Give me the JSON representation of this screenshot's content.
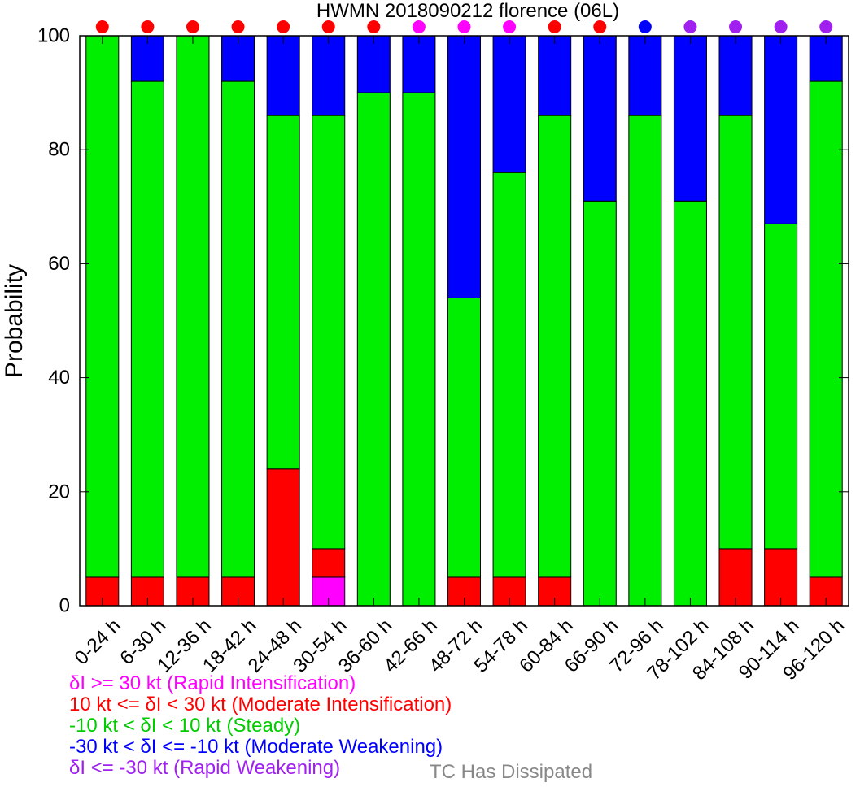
{
  "chart_data": {
    "type": "bar",
    "stacked": true,
    "title": "HWMN 2018090212 florence (06L)",
    "xlabel": "",
    "ylabel": "Probability",
    "ylim": [
      0,
      100
    ],
    "yticks": [
      0,
      20,
      40,
      60,
      80,
      100
    ],
    "grid": false,
    "categories": [
      "0-24 h",
      "6-30 h",
      "12-36 h",
      "18-42 h",
      "24-48 h",
      "30-54 h",
      "36-60 h",
      "42-66 h",
      "48-72 h",
      "54-78 h",
      "60-84 h",
      "66-90 h",
      "72-96 h",
      "78-102 h",
      "84-108 h",
      "90-114 h",
      "96-120 h"
    ],
    "series": [
      {
        "name": "δI >= 30 kt (Rapid Intensification)",
        "color": "#ff00ff",
        "values": [
          0,
          0,
          0,
          0,
          0,
          5,
          0,
          0,
          0,
          0,
          0,
          0,
          0,
          0,
          0,
          0,
          0
        ]
      },
      {
        "name": "10 kt <= δI < 30 kt (Moderate Intensification)",
        "color": "#ff0000",
        "values": [
          5,
          5,
          5,
          5,
          24,
          5,
          0,
          0,
          5,
          5,
          5,
          0,
          0,
          0,
          10,
          10,
          5
        ]
      },
      {
        "name": "-10 kt < δI < 10 kt (Steady)",
        "color": "#00ee00",
        "values": [
          95,
          87,
          95,
          87,
          62,
          76,
          90,
          90,
          49,
          71,
          81,
          71,
          86,
          71,
          76,
          57,
          87
        ]
      },
      {
        "name": "-30 kt < δI <= -10 kt (Moderate Weakening)",
        "color": "#0000ff",
        "values": [
          0,
          8,
          0,
          8,
          14,
          14,
          10,
          10,
          46,
          24,
          14,
          29,
          14,
          29,
          14,
          33,
          8
        ]
      },
      {
        "name": "δI <= -30 kt (Rapid Weakening)",
        "color": "#a020f0",
        "values": [
          0,
          0,
          0,
          0,
          0,
          0,
          0,
          0,
          0,
          0,
          0,
          0,
          0,
          0,
          0,
          0,
          0
        ]
      }
    ],
    "top_markers": [
      "#ff0000",
      "#ff0000",
      "#ff0000",
      "#ff0000",
      "#ff0000",
      "#ff0000",
      "#ff0000",
      "#ff00ff",
      "#ff00ff",
      "#ff00ff",
      "#ff0000",
      "#ff0000",
      "#0000ff",
      "#a020f0",
      "#a020f0",
      "#a020f0",
      "#a020f0"
    ],
    "legend": {
      "placement": "bottom-left",
      "entries": [
        {
          "label": "δI >= 30 kt (Rapid Intensification)",
          "color": "#ff00ff"
        },
        {
          "label": "10 kt <= δI < 30 kt (Moderate Intensification)",
          "color": "#ff0000"
        },
        {
          "label": "-10 kt < δI < 10 kt (Steady)",
          "color": "#00ee00"
        },
        {
          "label": "-30 kt < δI <= -10 kt (Moderate Weakening)",
          "color": "#0000ff"
        },
        {
          "label": "δI <= -30 kt (Rapid Weakening)",
          "color": "#a020f0"
        }
      ],
      "dissipated_label": "TC Has Dissipated",
      "dissipated_color": "#888888"
    }
  }
}
